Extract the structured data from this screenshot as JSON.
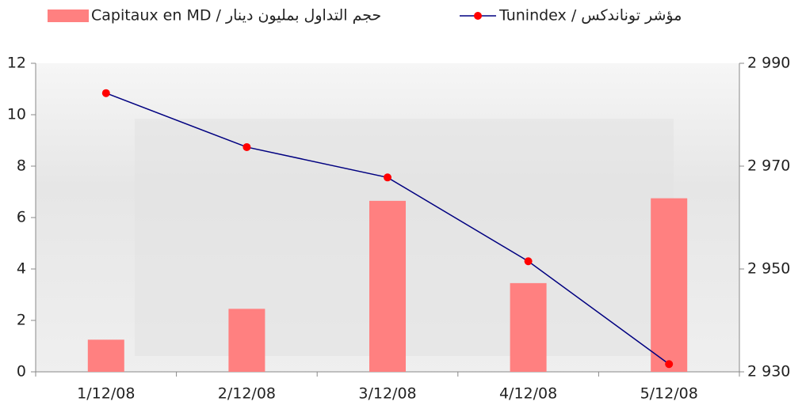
{
  "chart_data": {
    "type": "bar",
    "categories": [
      "1/12/08",
      "2/12/08",
      "3/12/08",
      "4/12/08",
      "5/12/08"
    ],
    "series": [
      {
        "name": "Capitaux en MD / حجم التداول بمليون دينار",
        "type": "bar",
        "color": "#ff8080",
        "values": [
          1.25,
          2.45,
          6.65,
          3.45,
          6.75
        ]
      },
      {
        "name": "Tunindex / مؤشر توناندكس",
        "type": "line",
        "axis": "y2",
        "color": "#000080",
        "marker_color": "#ff0000",
        "values": [
          2984.2,
          2973.7,
          2967.8,
          2951.5,
          2931.5
        ]
      }
    ],
    "ylim": [
      0,
      12
    ],
    "yticks": [
      0,
      2,
      4,
      6,
      8,
      10,
      12
    ],
    "y2lim": [
      2930,
      2990
    ],
    "y2ticks": [
      {
        "value": 2930,
        "label": "2 930"
      },
      {
        "value": 2950,
        "label": "2 950"
      },
      {
        "value": 2970,
        "label": "2 970"
      },
      {
        "value": 2990,
        "label": "2 990"
      }
    ],
    "legend": "top"
  }
}
